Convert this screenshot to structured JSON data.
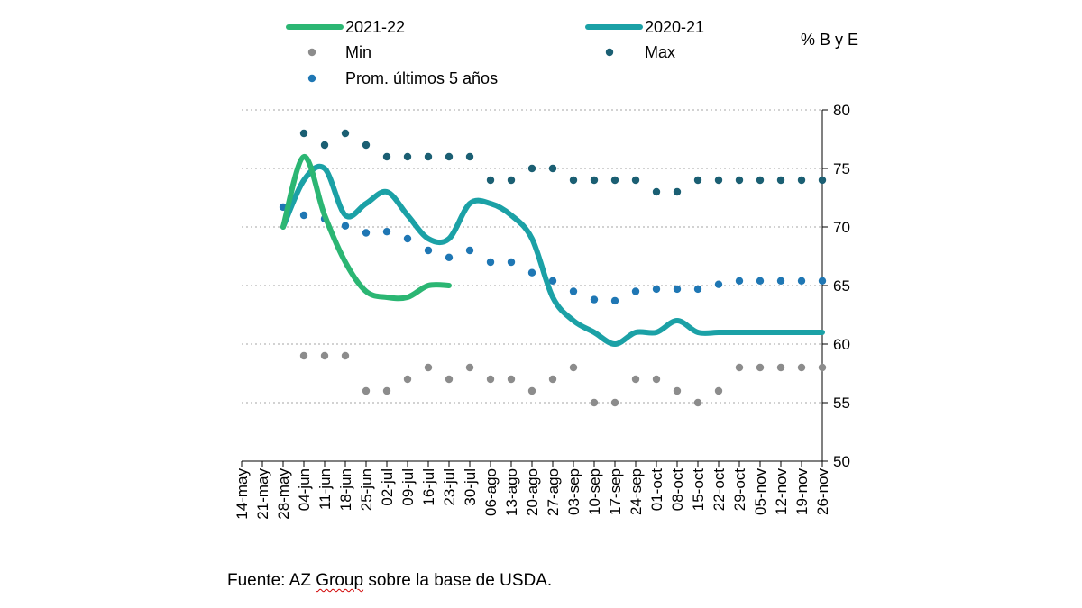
{
  "chart_data": {
    "type": "line",
    "ylabel": "% B y E",
    "ylim": [
      50,
      80
    ],
    "yticks": [
      50,
      55,
      60,
      65,
      70,
      75,
      80
    ],
    "grid": true,
    "categories": [
      "14-may",
      "21-may",
      "28-may",
      "04-jun",
      "11-jun",
      "18-jun",
      "25-jun",
      "02-jul",
      "09-jul",
      "16-jul",
      "23-jul",
      "30-jul",
      "06-ago",
      "13-ago",
      "20-ago",
      "27-ago",
      "03-sep",
      "10-sep",
      "17-sep",
      "24-sep",
      "01-oct",
      "08-oct",
      "15-oct",
      "22-oct",
      "29-oct",
      "05-nov",
      "12-nov",
      "19-nov",
      "26-nov"
    ],
    "series": [
      {
        "name": "2021-22",
        "kind": "line",
        "color": "#2bb673",
        "values": [
          null,
          null,
          70,
          76,
          71,
          67,
          64.5,
          64,
          64,
          65,
          65,
          null,
          null,
          null,
          null,
          null,
          null,
          null,
          null,
          null,
          null,
          null,
          null,
          null,
          null,
          null,
          null,
          null,
          null
        ]
      },
      {
        "name": "2020-21",
        "kind": "line",
        "color": "#1ba1a6",
        "values": [
          null,
          null,
          70,
          74,
          75,
          71,
          72,
          73,
          71,
          69,
          69,
          72,
          72,
          71,
          69,
          64,
          62,
          61,
          60,
          61,
          61,
          62,
          61,
          61,
          61,
          61,
          61,
          61,
          61
        ]
      },
      {
        "name": "Min",
        "kind": "dots",
        "color": "#8c8c8c",
        "values": [
          null,
          null,
          null,
          59,
          59,
          59,
          56,
          56,
          57,
          58,
          57,
          58,
          57,
          57,
          56,
          57,
          58,
          55,
          55,
          57,
          57,
          56,
          55,
          56,
          58,
          58,
          58,
          58,
          58
        ]
      },
      {
        "name": "Max",
        "kind": "dots",
        "color": "#1b5f73",
        "values": [
          null,
          null,
          null,
          78,
          77,
          78,
          77,
          76,
          76,
          76,
          76,
          76,
          74,
          74,
          75,
          75,
          74,
          74,
          74,
          74,
          73,
          73,
          74,
          74,
          74,
          74,
          74,
          74,
          74
        ]
      },
      {
        "name": "Prom. últimos 5 años",
        "kind": "dots",
        "color": "#1f77b4",
        "values": [
          null,
          null,
          71.7,
          71,
          70.7,
          70.1,
          69.5,
          69.6,
          69,
          68,
          67.4,
          68,
          67,
          67,
          66.1,
          65.4,
          64.5,
          63.8,
          63.7,
          64.5,
          64.7,
          64.7,
          64.7,
          65.1,
          65.4,
          65.4,
          65.4,
          65.4,
          65.4
        ]
      }
    ],
    "legend": [
      {
        "label": "2021-22",
        "kind": "line"
      },
      {
        "label": "2020-21",
        "kind": "line"
      },
      {
        "label": "Min",
        "kind": "dot"
      },
      {
        "label": "Max",
        "kind": "dot"
      },
      {
        "label": "Prom. últimos 5 años",
        "kind": "dot"
      }
    ]
  },
  "source": {
    "prefix": "Fuente: AZ ",
    "underlined": "Group",
    "suffix": " sobre la base de USDA."
  }
}
